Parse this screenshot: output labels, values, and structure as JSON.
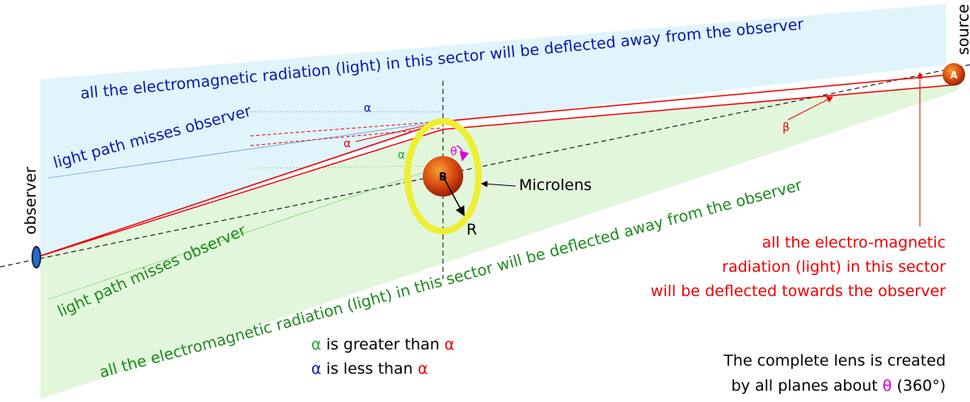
{
  "labels": {
    "source": "source",
    "source_point": "A",
    "top_sector": "all the electromagnetic radiation (light) in this sector will be deflected away from the observer",
    "top_alpha": "α",
    "top_miss": "light path misses observer",
    "red_alpha": "α",
    "green_alpha": "α",
    "theta": "θ",
    "lens_point": "B",
    "microlens": "Microlens",
    "radius": "R",
    "beta": "β",
    "observer": "observer",
    "bottom_miss": "light path misses observer",
    "bottom_sector": "all the electromagnetic radiation (light) in this sector will be deflected away from the observer",
    "towards": [
      "all the electro-magnetic",
      "radiation (light) in this sector",
      "will be deflected towards the observer"
    ]
  },
  "legend": {
    "line1": {
      "a": "α",
      "text": "is greater than",
      "b": "α"
    },
    "line2": {
      "a": "α",
      "text": "is less than",
      "b": "α"
    }
  },
  "note": {
    "line1": "The complete lens is created",
    "line2": {
      "text": "by all planes about",
      "theta": "θ",
      "suffix": "(360°)"
    }
  }
}
